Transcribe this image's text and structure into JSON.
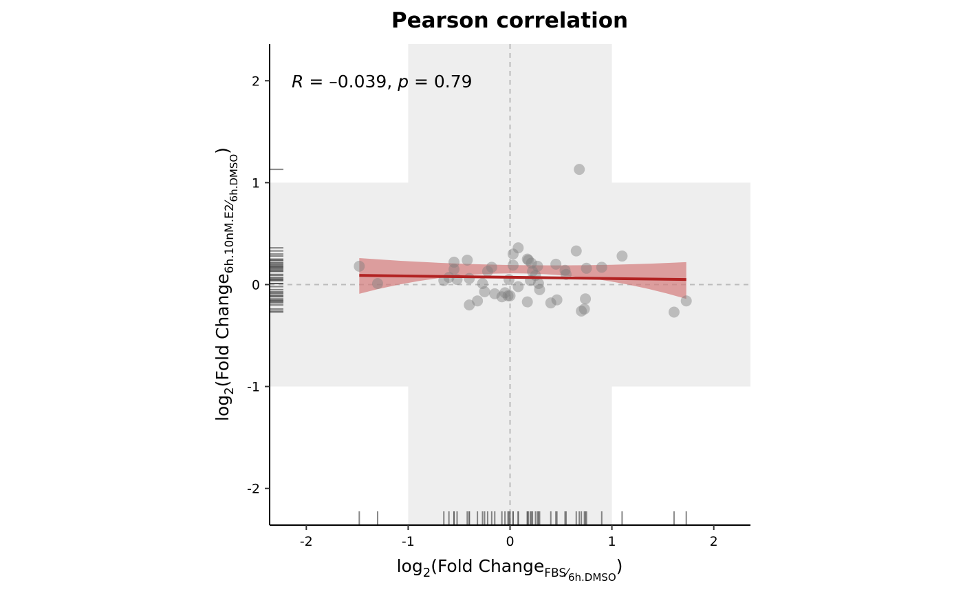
{
  "chart_data": {
    "type": "scatter",
    "title": "Pearson correlation",
    "xlabel": {
      "prefix": "log",
      "log_base": "2",
      "open": "(Fold Change",
      "sub_numerator": "FBS",
      "sub_slash": "⁄",
      "sub_denominator": "6h.DMSO",
      "close": ")"
    },
    "ylabel": {
      "prefix": "log",
      "log_base": "2",
      "open": "(Fold Change",
      "sub_numerator": "6h.10nM.E2",
      "sub_slash": "⁄",
      "sub_denominator": "6h.DMSO",
      "close": ")"
    },
    "annotation": {
      "r_symbol": "R",
      "r_text": " = –0.039, ",
      "p_symbol": "p",
      "p_text": " = 0.79"
    },
    "xlim": [
      -2.36,
      2.36
    ],
    "ylim": [
      -2.36,
      2.36
    ],
    "x_ticks": [
      -2,
      -1,
      0,
      1,
      2
    ],
    "y_ticks": [
      -2,
      -1,
      0,
      1,
      2
    ],
    "x_tick_labels": [
      "-2",
      "-1",
      "0",
      "1",
      "2"
    ],
    "y_tick_labels": [
      "-2",
      "-1",
      "0",
      "1",
      "2"
    ],
    "shaded_band": {
      "x": [
        -1,
        1
      ],
      "y": [
        -1,
        1
      ],
      "color": "#eeeeee"
    },
    "reference_lines": {
      "x": 0,
      "y": 0,
      "color": "#bbbbbb",
      "style": "dashed"
    },
    "regression": {
      "x": [
        -1.48,
        1.73
      ],
      "y": [
        0.09,
        0.05
      ],
      "ci_lower": [
        -0.09,
        -0.14
      ],
      "ci_upper": [
        0.26,
        0.22
      ],
      "ci_center": [
        0.15,
        0.2
      ],
      "line_color": "#b22222",
      "band_color": "#d47a7a"
    },
    "point_color": "#7f7f7f",
    "rug_color": "#555555",
    "points": [
      {
        "x": -1.48,
        "y": 0.18
      },
      {
        "x": -1.3,
        "y": 0.01
      },
      {
        "x": -0.65,
        "y": 0.04
      },
      {
        "x": -0.6,
        "y": 0.07
      },
      {
        "x": -0.55,
        "y": 0.22
      },
      {
        "x": -0.55,
        "y": 0.15
      },
      {
        "x": -0.52,
        "y": 0.05
      },
      {
        "x": -0.42,
        "y": 0.24
      },
      {
        "x": -0.4,
        "y": 0.06
      },
      {
        "x": -0.4,
        "y": -0.2
      },
      {
        "x": -0.32,
        "y": -0.16
      },
      {
        "x": -0.27,
        "y": 0.01
      },
      {
        "x": -0.25,
        "y": -0.07
      },
      {
        "x": -0.22,
        "y": 0.13
      },
      {
        "x": -0.18,
        "y": 0.17
      },
      {
        "x": -0.15,
        "y": -0.09
      },
      {
        "x": -0.08,
        "y": -0.12
      },
      {
        "x": -0.05,
        "y": -0.08
      },
      {
        "x": -0.02,
        "y": -0.11
      },
      {
        "x": -0.01,
        "y": 0.05
      },
      {
        "x": 0.0,
        "y": -0.11
      },
      {
        "x": 0.03,
        "y": 0.3
      },
      {
        "x": 0.03,
        "y": 0.19
      },
      {
        "x": 0.08,
        "y": -0.02
      },
      {
        "x": 0.08,
        "y": 0.36
      },
      {
        "x": 0.17,
        "y": 0.25
      },
      {
        "x": 0.17,
        "y": -0.17
      },
      {
        "x": 0.18,
        "y": 0.24
      },
      {
        "x": 0.2,
        "y": 0.04
      },
      {
        "x": 0.21,
        "y": 0.21
      },
      {
        "x": 0.22,
        "y": 0.13
      },
      {
        "x": 0.25,
        "y": 0.09
      },
      {
        "x": 0.27,
        "y": 0.18
      },
      {
        "x": 0.28,
        "y": 0.01
      },
      {
        "x": 0.29,
        "y": -0.05
      },
      {
        "x": 0.4,
        "y": -0.18
      },
      {
        "x": 0.45,
        "y": 0.2
      },
      {
        "x": 0.46,
        "y": -0.15
      },
      {
        "x": 0.54,
        "y": 0.14
      },
      {
        "x": 0.55,
        "y": 0.1
      },
      {
        "x": 0.65,
        "y": 0.33
      },
      {
        "x": 0.68,
        "y": 1.13
      },
      {
        "x": 0.7,
        "y": -0.26
      },
      {
        "x": 0.73,
        "y": -0.24
      },
      {
        "x": 0.74,
        "y": -0.14
      },
      {
        "x": 0.75,
        "y": 0.16
      },
      {
        "x": 0.9,
        "y": 0.17
      },
      {
        "x": 1.1,
        "y": 0.28
      },
      {
        "x": 1.61,
        "y": -0.27
      },
      {
        "x": 1.73,
        "y": -0.16
      }
    ]
  }
}
